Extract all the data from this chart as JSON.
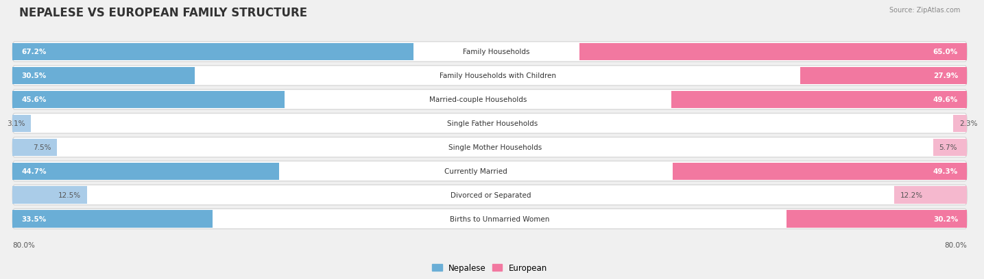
{
  "title": "NEPALESE VS EUROPEAN FAMILY STRUCTURE",
  "source": "Source: ZipAtlas.com",
  "categories": [
    "Family Households",
    "Family Households with Children",
    "Married-couple Households",
    "Single Father Households",
    "Single Mother Households",
    "Currently Married",
    "Divorced or Separated",
    "Births to Unmarried Women"
  ],
  "nepalese_values": [
    67.2,
    30.5,
    45.6,
    3.1,
    7.5,
    44.7,
    12.5,
    33.5
  ],
  "european_values": [
    65.0,
    27.9,
    49.6,
    2.3,
    5.7,
    49.3,
    12.2,
    30.2
  ],
  "nepalese_color": "#6aaed6",
  "european_color": "#f278a0",
  "nepalese_color_light": "#aacce8",
  "european_color_light": "#f5b8ce",
  "axis_max": 80.0,
  "background_color": "#f0f0f0",
  "row_bg_color": "#ffffff",
  "title_fontsize": 12,
  "label_fontsize": 7.5,
  "value_fontsize": 7.5,
  "legend_labels": [
    "Nepalese",
    "European"
  ],
  "large_nep_threshold": 20.0,
  "large_eur_threshold": 20.0
}
